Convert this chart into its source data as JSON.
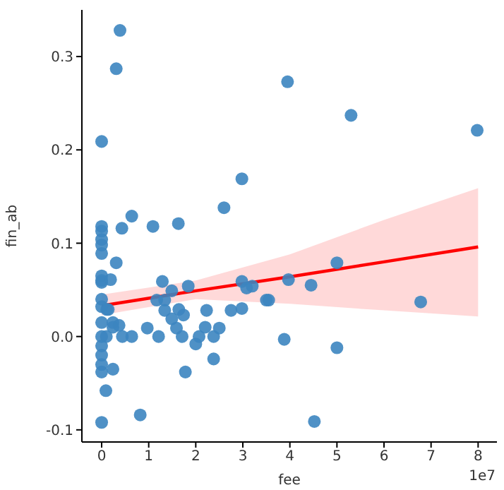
{
  "chart_data": {
    "type": "scatter",
    "xlabel": "fee",
    "ylabel": "fin_ab",
    "annotations": [
      "1e7"
    ],
    "xlim": [
      -0.42,
      8.4
    ],
    "ylim": [
      -0.113,
      0.35
    ],
    "xticks": [
      0,
      1,
      2,
      3,
      4,
      5,
      6,
      7,
      8
    ],
    "yticks": [
      -0.1,
      {
        "value": 0,
        "label": "0.0"
      },
      0.1,
      0.2,
      0.3
    ],
    "grid": false,
    "legend": false,
    "series": [
      {
        "marker": "circle",
        "color": "#3c85c0",
        "x": [
          0.39,
          0.31,
          0,
          3.95,
          2.98,
          2.6,
          0,
          0.64,
          0.43,
          1.09,
          1.63,
          5.3,
          7.98,
          5,
          3.97,
          4.45,
          3.55,
          6.78,
          3.88,
          5,
          4.52,
          0,
          0,
          0,
          0,
          0,
          0,
          0,
          0.19,
          0.31,
          0,
          0,
          0.11,
          0.14,
          0,
          0.24,
          0.37,
          0,
          0.1,
          0.44,
          0.64,
          0,
          0,
          0,
          0,
          0.24,
          0.09,
          0,
          0.82,
          1.29,
          1.17,
          1.34,
          1.49,
          1.84,
          1.34,
          1.64,
          1.74,
          1.49,
          0.97,
          1.59,
          1.21,
          1.71,
          2,
          2.07,
          2.2,
          2.38,
          2.5,
          2.38,
          1.78,
          2.23,
          2.75,
          2.98,
          2.98,
          3.08,
          3.2,
          3.5,
          0.24
        ],
        "values": [
          0.328,
          0.287,
          0.209,
          0.273,
          0.169,
          0.138,
          0.118,
          0.129,
          0.116,
          0.118,
          0.121,
          0.237,
          0.221,
          0.079,
          0.061,
          0.055,
          0.039,
          0.037,
          -0.003,
          -0.012,
          -0.091,
          0.113,
          0.104,
          0.098,
          0.089,
          0.065,
          0.06,
          0.058,
          0.061,
          0.079,
          0.04,
          0.032,
          0.029,
          0.029,
          0.015,
          0.015,
          0.012,
          0,
          0,
          0,
          0,
          -0.01,
          -0.02,
          -0.03,
          -0.038,
          -0.035,
          -0.058,
          -0.092,
          -0.084,
          0.059,
          0.039,
          0.039,
          0.049,
          0.054,
          0.028,
          0.029,
          0.023,
          0.019,
          0.009,
          0.009,
          0,
          0,
          -0.008,
          0,
          0.01,
          0,
          0.009,
          -0.024,
          -0.038,
          0.028,
          0.028,
          0.03,
          0.059,
          0.052,
          0.054,
          0.039,
          0.01
        ]
      },
      {
        "type": "line",
        "marker": "none",
        "color": "#ff0000",
        "x": [
          0,
          2,
          4,
          6,
          8
        ],
        "values": [
          0.033,
          0.049,
          0.064,
          0.08,
          0.096
        ],
        "lower": [
          0.023,
          0.04,
          0.035,
          0.028,
          0.0215
        ],
        "upper": [
          0.045,
          0.06,
          0.088,
          0.125,
          0.159
        ]
      }
    ]
  }
}
